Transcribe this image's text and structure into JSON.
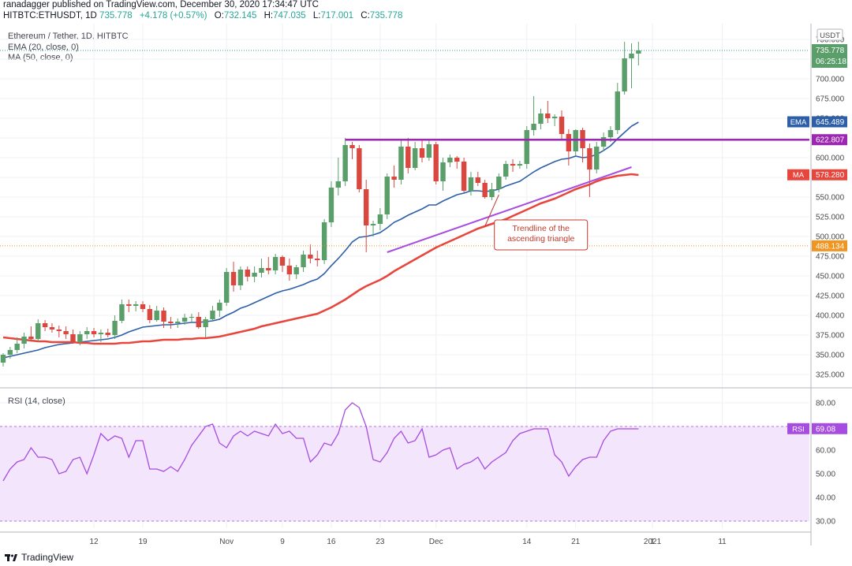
{
  "header": {
    "published": "ranadagger published on TradingView.com, December 30, 2020 17:34:47 UTC",
    "symbol_line": "HITBTC:ETHUSDT, 1D",
    "last": "735.778",
    "change": "+4.178 (+0.57%)",
    "o": "732.145",
    "h": "747.035",
    "l": "717.001",
    "c": "735.778"
  },
  "legend": {
    "title": "Ethereum / Tether, 1D, HITBTC",
    "ema": "EMA (20, close, 0)",
    "ma": "MA (50, close, 0)",
    "rsi": "RSI (14, close)"
  },
  "footer": {
    "brand": "TradingView"
  },
  "colors": {
    "up": "#26a69a",
    "up_body": "#5a9e6a",
    "down": "#d9473f",
    "ema": "#2c5fa8",
    "ma": "#e8453c",
    "horizontal": "#9c27b0",
    "trend": "#a64ce0",
    "rsi": "#a64ce0",
    "price_marker": "#f0951f"
  },
  "chart_data": [
    {
      "type": "candlestick",
      "title": "Ethereum / Tether, 1D, HITBTC",
      "y_axis_unit": "USDT",
      "y_ticks": [
        325,
        350,
        375,
        400,
        425,
        450,
        475,
        500,
        525,
        550,
        575,
        600,
        625,
        650,
        675,
        700,
        725,
        750
      ],
      "y_tick_labels": [
        "325.000",
        "350.000",
        "375.000",
        "400.000",
        "425.000",
        "450.000",
        "475.000",
        "500.000",
        "525.000",
        "550.000",
        "575.000",
        "600.000",
        "625.000",
        "650.000",
        "675.000",
        "700.000",
        "725.000",
        "750.000"
      ],
      "ylim": [
        312,
        760
      ],
      "x_ticks": [
        {
          "day": 13,
          "label": "12"
        },
        {
          "day": 20,
          "label": "19"
        },
        {
          "day": 32,
          "label": "Nov"
        },
        {
          "day": 40,
          "label": "9"
        },
        {
          "day": 47,
          "label": "16"
        },
        {
          "day": 54,
          "label": "23"
        },
        {
          "day": 62,
          "label": "Dec"
        },
        {
          "day": 75,
          "label": "14"
        },
        {
          "day": 82,
          "label": "21"
        },
        {
          "day": 93,
          "label": "1"
        },
        {
          "day": 93,
          "label": "2021"
        },
        {
          "day": 103,
          "label": "11"
        }
      ],
      "candles": [
        {
          "o": 340,
          "h": 352,
          "l": 335,
          "c": 350
        },
        {
          "o": 350,
          "h": 360,
          "l": 345,
          "c": 356
        },
        {
          "o": 356,
          "h": 372,
          "l": 352,
          "c": 364
        },
        {
          "o": 364,
          "h": 378,
          "l": 358,
          "c": 373
        },
        {
          "o": 373,
          "h": 386,
          "l": 368,
          "c": 370
        },
        {
          "o": 370,
          "h": 395,
          "l": 366,
          "c": 390
        },
        {
          "o": 390,
          "h": 394,
          "l": 380,
          "c": 385
        },
        {
          "o": 385,
          "h": 390,
          "l": 378,
          "c": 382
        },
        {
          "o": 382,
          "h": 387,
          "l": 372,
          "c": 380
        },
        {
          "o": 380,
          "h": 386,
          "l": 370,
          "c": 376
        },
        {
          "o": 376,
          "h": 382,
          "l": 364,
          "c": 366
        },
        {
          "o": 366,
          "h": 380,
          "l": 362,
          "c": 376
        },
        {
          "o": 376,
          "h": 385,
          "l": 370,
          "c": 380
        },
        {
          "o": 380,
          "h": 384,
          "l": 372,
          "c": 376
        },
        {
          "o": 376,
          "h": 382,
          "l": 366,
          "c": 378
        },
        {
          "o": 378,
          "h": 383,
          "l": 372,
          "c": 375
        },
        {
          "o": 375,
          "h": 400,
          "l": 370,
          "c": 393
        },
        {
          "o": 393,
          "h": 420,
          "l": 390,
          "c": 414
        },
        {
          "o": 414,
          "h": 420,
          "l": 404,
          "c": 412
        },
        {
          "o": 412,
          "h": 418,
          "l": 405,
          "c": 414
        },
        {
          "o": 414,
          "h": 418,
          "l": 404,
          "c": 408
        },
        {
          "o": 408,
          "h": 413,
          "l": 390,
          "c": 394
        },
        {
          "o": 394,
          "h": 412,
          "l": 392,
          "c": 406
        },
        {
          "o": 406,
          "h": 410,
          "l": 384,
          "c": 392
        },
        {
          "o": 392,
          "h": 398,
          "l": 383,
          "c": 390
        },
        {
          "o": 390,
          "h": 396,
          "l": 384,
          "c": 392
        },
        {
          "o": 392,
          "h": 402,
          "l": 388,
          "c": 397
        },
        {
          "o": 397,
          "h": 402,
          "l": 390,
          "c": 398
        },
        {
          "o": 398,
          "h": 404,
          "l": 383,
          "c": 385
        },
        {
          "o": 385,
          "h": 398,
          "l": 372,
          "c": 395
        },
        {
          "o": 395,
          "h": 412,
          "l": 392,
          "c": 406
        },
        {
          "o": 406,
          "h": 420,
          "l": 398,
          "c": 416
        },
        {
          "o": 416,
          "h": 460,
          "l": 412,
          "c": 455
        },
        {
          "o": 455,
          "h": 468,
          "l": 430,
          "c": 438
        },
        {
          "o": 438,
          "h": 462,
          "l": 432,
          "c": 458
        },
        {
          "o": 458,
          "h": 462,
          "l": 443,
          "c": 449
        },
        {
          "o": 449,
          "h": 462,
          "l": 442,
          "c": 454
        },
        {
          "o": 454,
          "h": 472,
          "l": 448,
          "c": 460
        },
        {
          "o": 460,
          "h": 474,
          "l": 452,
          "c": 457
        },
        {
          "o": 457,
          "h": 478,
          "l": 452,
          "c": 474
        },
        {
          "o": 474,
          "h": 476,
          "l": 455,
          "c": 463
        },
        {
          "o": 463,
          "h": 472,
          "l": 444,
          "c": 452
        },
        {
          "o": 452,
          "h": 464,
          "l": 446,
          "c": 461
        },
        {
          "o": 461,
          "h": 482,
          "l": 455,
          "c": 477
        },
        {
          "o": 477,
          "h": 490,
          "l": 466,
          "c": 472
        },
        {
          "o": 472,
          "h": 482,
          "l": 462,
          "c": 470
        },
        {
          "o": 470,
          "h": 522,
          "l": 465,
          "c": 518
        },
        {
          "o": 518,
          "h": 570,
          "l": 512,
          "c": 562
        },
        {
          "o": 562,
          "h": 600,
          "l": 552,
          "c": 570
        },
        {
          "o": 570,
          "h": 625,
          "l": 564,
          "c": 616
        },
        {
          "o": 616,
          "h": 620,
          "l": 598,
          "c": 612
        },
        {
          "o": 612,
          "h": 616,
          "l": 556,
          "c": 560
        },
        {
          "o": 560,
          "h": 572,
          "l": 480,
          "c": 514
        },
        {
          "o": 514,
          "h": 520,
          "l": 500,
          "c": 516
        },
        {
          "o": 516,
          "h": 536,
          "l": 508,
          "c": 528
        },
        {
          "o": 528,
          "h": 580,
          "l": 522,
          "c": 576
        },
        {
          "o": 576,
          "h": 590,
          "l": 562,
          "c": 572
        },
        {
          "o": 572,
          "h": 622,
          "l": 566,
          "c": 614
        },
        {
          "o": 614,
          "h": 625,
          "l": 580,
          "c": 587
        },
        {
          "o": 587,
          "h": 620,
          "l": 584,
          "c": 612
        },
        {
          "o": 612,
          "h": 622,
          "l": 594,
          "c": 600
        },
        {
          "o": 600,
          "h": 622,
          "l": 596,
          "c": 617
        },
        {
          "o": 617,
          "h": 620,
          "l": 566,
          "c": 570
        },
        {
          "o": 570,
          "h": 600,
          "l": 558,
          "c": 594
        },
        {
          "o": 594,
          "h": 604,
          "l": 588,
          "c": 600
        },
        {
          "o": 600,
          "h": 602,
          "l": 586,
          "c": 595
        },
        {
          "o": 595,
          "h": 600,
          "l": 556,
          "c": 558
        },
        {
          "o": 558,
          "h": 582,
          "l": 552,
          "c": 575
        },
        {
          "o": 575,
          "h": 582,
          "l": 564,
          "c": 568
        },
        {
          "o": 568,
          "h": 572,
          "l": 548,
          "c": 550
        },
        {
          "o": 550,
          "h": 568,
          "l": 546,
          "c": 560
        },
        {
          "o": 560,
          "h": 580,
          "l": 556,
          "c": 576
        },
        {
          "o": 576,
          "h": 596,
          "l": 572,
          "c": 592
        },
        {
          "o": 592,
          "h": 598,
          "l": 582,
          "c": 590
        },
        {
          "o": 590,
          "h": 596,
          "l": 586,
          "c": 592
        },
        {
          "o": 592,
          "h": 640,
          "l": 586,
          "c": 635
        },
        {
          "o": 635,
          "h": 678,
          "l": 628,
          "c": 643
        },
        {
          "o": 643,
          "h": 662,
          "l": 636,
          "c": 656
        },
        {
          "o": 656,
          "h": 672,
          "l": 644,
          "c": 650
        },
        {
          "o": 650,
          "h": 655,
          "l": 640,
          "c": 652
        },
        {
          "o": 652,
          "h": 660,
          "l": 622,
          "c": 630
        },
        {
          "o": 630,
          "h": 636,
          "l": 590,
          "c": 608
        },
        {
          "o": 608,
          "h": 636,
          "l": 602,
          "c": 635
        },
        {
          "o": 635,
          "h": 638,
          "l": 594,
          "c": 612
        },
        {
          "o": 612,
          "h": 618,
          "l": 550,
          "c": 585
        },
        {
          "o": 585,
          "h": 620,
          "l": 580,
          "c": 614
        },
        {
          "o": 614,
          "h": 632,
          "l": 608,
          "c": 626
        },
        {
          "o": 626,
          "h": 640,
          "l": 620,
          "c": 635
        },
        {
          "o": 635,
          "h": 695,
          "l": 630,
          "c": 684
        },
        {
          "o": 684,
          "h": 747,
          "l": 680,
          "c": 726
        },
        {
          "o": 726,
          "h": 745,
          "l": 688,
          "c": 732
        },
        {
          "o": 732,
          "h": 747,
          "l": 717,
          "c": 736
        }
      ],
      "series": [
        {
          "name": "EMA (20, close, 0)",
          "last": "645.489",
          "values": [
            346,
            348,
            350,
            352,
            354,
            356,
            359,
            361,
            363,
            364,
            365,
            366,
            367,
            368,
            369,
            370,
            372,
            375,
            379,
            382,
            385,
            386,
            387,
            388,
            388,
            389,
            390,
            391,
            391,
            392,
            393,
            395,
            400,
            404,
            409,
            412,
            416,
            420,
            424,
            428,
            431,
            433,
            436,
            439,
            443,
            446,
            453,
            463,
            472,
            482,
            493,
            499,
            500,
            502,
            505,
            511,
            518,
            522,
            527,
            531,
            535,
            540,
            540,
            545,
            549,
            553,
            555,
            558,
            558,
            557,
            558,
            560,
            564,
            567,
            570,
            576,
            582,
            587,
            591,
            595,
            598,
            599,
            602,
            600,
            601,
            604,
            609,
            615,
            624,
            632,
            640,
            645
          ]
        },
        {
          "name": "MA (50, close, 0)",
          "last": "578.280",
          "values": [
            372,
            371,
            370,
            369,
            368,
            367,
            367,
            366,
            366,
            366,
            366,
            365,
            365,
            364,
            364,
            364,
            364,
            365,
            365,
            366,
            367,
            367,
            368,
            369,
            369,
            369,
            370,
            370,
            371,
            371,
            372,
            373,
            375,
            377,
            379,
            381,
            383,
            386,
            388,
            390,
            392,
            394,
            396,
            398,
            400,
            402,
            406,
            410,
            415,
            420,
            426,
            432,
            437,
            441,
            445,
            450,
            456,
            461,
            466,
            471,
            476,
            481,
            486,
            490,
            494,
            498,
            502,
            506,
            510,
            513,
            516,
            519,
            522,
            526,
            530,
            534,
            538,
            542,
            545,
            548,
            552,
            556,
            560,
            563,
            566,
            570,
            573,
            575,
            577,
            578,
            579,
            578
          ]
        }
      ],
      "horizontal_line": {
        "price": 622.807,
        "label": "622.807"
      },
      "dotted_line": {
        "price": 488.134,
        "label": "488.134"
      },
      "trendline": {
        "from": {
          "day": 55,
          "price": 480
        },
        "to": {
          "day": 90,
          "price": 588
        }
      },
      "annotation": {
        "text": [
          "Trendline of the",
          "ascending triangle"
        ],
        "at": {
          "day": 62,
          "price": 543
        }
      },
      "last_price": {
        "label": "735.778",
        "countdown": "06:25:18"
      }
    },
    {
      "type": "line",
      "title": "RSI (14, close)",
      "y_ticks": [
        30,
        40,
        50,
        60,
        70,
        80
      ],
      "y_tick_labels": [
        "30.00",
        "40.00",
        "50.00",
        "60.00",
        "70.00",
        "80.00"
      ],
      "ylim": [
        27,
        85
      ],
      "band": [
        30,
        70
      ],
      "last": "69.08",
      "values": [
        47,
        52,
        55,
        56,
        61,
        57,
        57,
        56,
        50,
        51,
        56,
        57,
        50,
        58,
        67,
        64,
        66,
        65,
        57,
        64,
        64,
        52,
        52,
        51,
        53,
        51,
        56,
        62,
        66,
        70,
        71,
        63,
        61,
        66,
        68,
        66,
        68,
        67,
        66,
        71,
        67,
        68,
        65,
        65,
        55,
        58,
        63,
        62,
        67,
        77,
        80,
        78,
        70,
        56,
        55,
        59,
        65,
        68,
        63,
        64,
        69,
        57,
        58,
        60,
        61,
        52,
        54,
        55,
        57,
        52,
        55,
        57,
        59,
        64,
        67,
        68,
        69,
        69,
        69,
        58,
        55,
        49,
        53,
        56,
        57,
        57,
        64,
        68,
        69,
        69,
        69,
        69
      ]
    }
  ]
}
